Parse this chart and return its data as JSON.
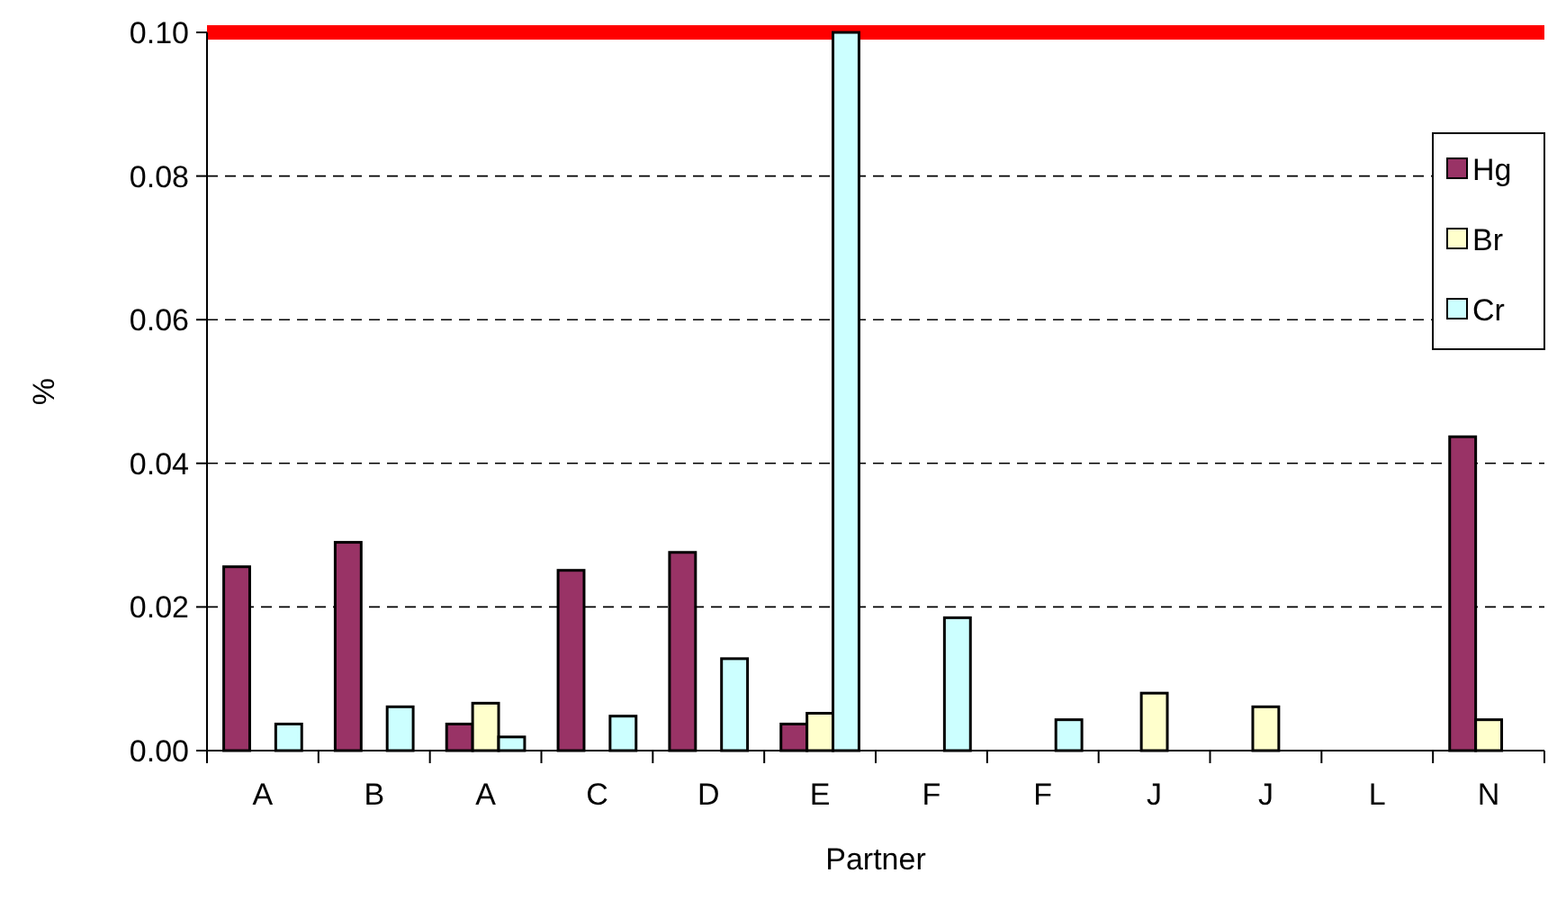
{
  "chart_data": {
    "type": "bar",
    "xlabel": "Partner",
    "ylabel": "%",
    "categories": [
      "A",
      "B",
      "A",
      "C",
      "D",
      "E",
      "F",
      "F",
      "J",
      "J",
      "L",
      "N"
    ],
    "series": [
      {
        "name": "Hg",
        "color": "#993366",
        "values": [
          0.0256,
          0.029,
          0.0037,
          0.0251,
          0.0276,
          0.0037,
          null,
          null,
          null,
          null,
          null,
          0.0437
        ]
      },
      {
        "name": "Br",
        "color": "#ffffcc",
        "values": [
          null,
          null,
          0.0066,
          null,
          null,
          0.0052,
          null,
          null,
          0.008,
          0.0061,
          null,
          0.0043
        ]
      },
      {
        "name": "Cr",
        "color": "#ccffff",
        "values": [
          0.0037,
          0.0061,
          0.0019,
          0.0048,
          0.0128,
          0.1,
          0.0185,
          0.0043,
          null,
          null,
          null,
          null
        ]
      }
    ],
    "ylim": [
      0,
      0.1
    ],
    "yticks": [
      {
        "value": 0,
        "label": "0.00"
      },
      {
        "value": 0.02,
        "label": "0.02"
      },
      {
        "value": 0.04,
        "label": "0.04"
      },
      {
        "value": 0.06,
        "label": "0.06"
      },
      {
        "value": 0.08,
        "label": "0.08"
      },
      {
        "value": 0.1,
        "label": "0.10"
      }
    ],
    "grid": "y",
    "legend": "top right",
    "ref_lines": [
      {
        "axis": "y",
        "value": 0.1,
        "color": "#ff0000"
      }
    ]
  }
}
